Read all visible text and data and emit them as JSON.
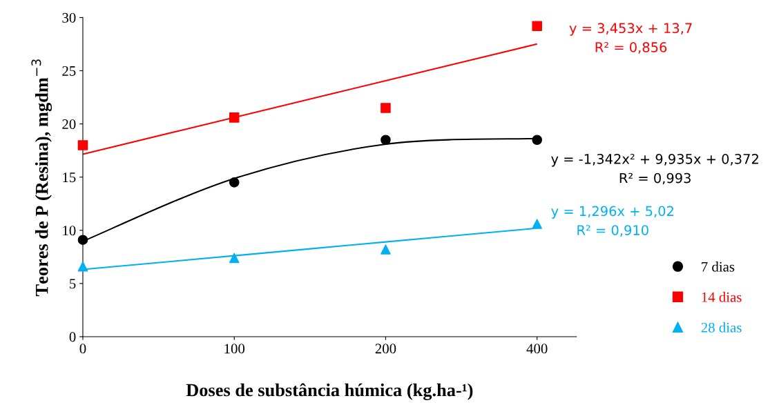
{
  "chart_data": {
    "type": "scatter",
    "xlabel": "Doses de substância húmica (kg.ha-¹)",
    "ylabel": "Teores de P (Resina), mgdm$^{−3}$",
    "categories": [
      "0",
      "100",
      "200",
      "400"
    ],
    "series": [
      {
        "name": "7 dias",
        "marker": "circle",
        "color": "#000000",
        "values": [
          9.1,
          14.5,
          18.5,
          18.5
        ]
      },
      {
        "name": "14 dias",
        "marker": "square",
        "color": "#ff0000",
        "values": [
          18.0,
          20.6,
          21.5,
          29.2
        ]
      },
      {
        "name": "28 dias",
        "marker": "triangle",
        "color": "#00b0f0",
        "values": [
          6.6,
          7.4,
          8.2,
          10.6
        ]
      },
      {
        "type": "line",
        "color": "#ff0000",
        "values": [
          17.15,
          20.61,
          24.06,
          27.51
        ]
      },
      {
        "type": "line",
        "color": "#000000",
        "values": [
          8.97,
          14.87,
          18.09,
          18.63
        ]
      },
      {
        "type": "line",
        "color": "#00b0f0",
        "values": [
          6.32,
          7.61,
          8.91,
          10.2
        ]
      }
    ],
    "annotations": [
      "y = 3,453x + 13,7\nR² = 0,856",
      "y = -1,342x² + 9,935x + 0,372\nR² = 0,993",
      "y = 1,296x + 5,02\nR² = 0,910"
    ],
    "ylim": [
      0,
      30
    ],
    "yticks": [
      0,
      5,
      10,
      15,
      20,
      25,
      30
    ],
    "grid": false,
    "legend": "right"
  }
}
